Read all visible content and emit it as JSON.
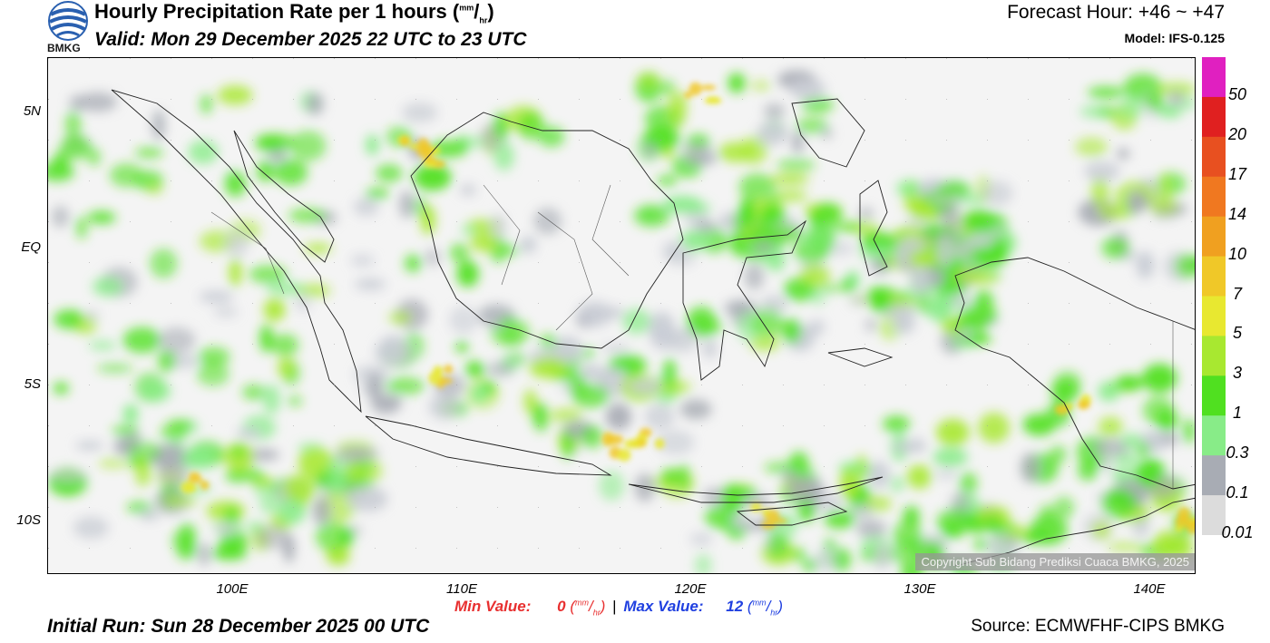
{
  "header": {
    "title": "Hourly Precipitation Rate per 1 hours",
    "title_unit_num": "mm",
    "title_unit_den": "hr",
    "valid": "Valid: Mon 29 December 2025 22 UTC to 23 UTC",
    "forecast_hour": "Forecast Hour: +46 ~ +47",
    "model": "Model: IFS-0.125"
  },
  "logo": {
    "text": "BMKG",
    "icon": "bmkg-logo-icon"
  },
  "map": {
    "lat_labels": [
      "5N",
      "EQ",
      "5S",
      "10S"
    ],
    "lon_labels": [
      "100E",
      "110E",
      "120E",
      "130E",
      "140E"
    ],
    "copyright": "Copyright Sub Bidang Prediksi Cuaca BMKG, 2025"
  },
  "colorbar": {
    "labels": [
      "50",
      "20",
      "17",
      "14",
      "10",
      "7",
      "5",
      "3",
      "1",
      "0.3",
      "0.1",
      "0.01"
    ],
    "colors": [
      "#e020c0",
      "#e02020",
      "#e85020",
      "#f07820",
      "#f0a020",
      "#f0c828",
      "#e8e830",
      "#a8e830",
      "#50e020",
      "#88ec88",
      "#a8acb4",
      "#dcdcdc"
    ]
  },
  "footer": {
    "min_label": "Min Value:",
    "min_value": "0",
    "separator": "|",
    "max_label": "Max Value:",
    "max_value": "12",
    "unit_num": "mm",
    "unit_den": "hr",
    "initial_run": "Initial Run: Sun 28 December 2025 00 UTC",
    "source": "Source: ECMWFHF-CIPS BMKG"
  }
}
